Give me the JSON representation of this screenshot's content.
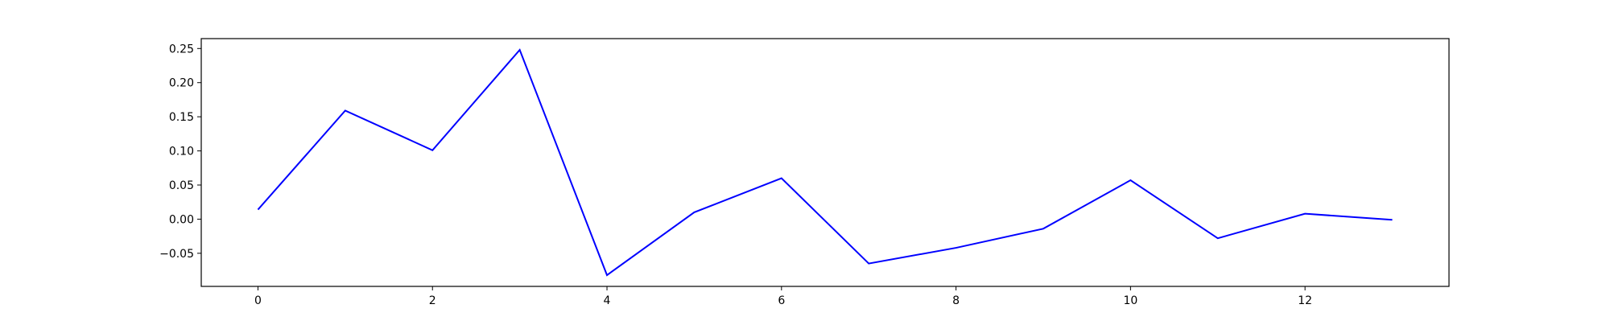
{
  "chart_data": {
    "type": "line",
    "title": "",
    "xlabel": "",
    "ylabel": "",
    "xlim": [
      -0.65,
      13.65
    ],
    "ylim": [
      -0.0985,
      0.2645
    ],
    "grid": false,
    "legend": false,
    "x_ticks": [
      0,
      2,
      4,
      6,
      8,
      10,
      12
    ],
    "x_tick_labels": [
      "0",
      "2",
      "4",
      "6",
      "8",
      "10",
      "12"
    ],
    "y_ticks": [
      -0.05,
      0.0,
      0.05,
      0.1,
      0.15,
      0.2,
      0.25
    ],
    "y_tick_labels": [
      "−0.05",
      "0.00",
      "0.05",
      "0.10",
      "0.15",
      "0.20",
      "0.25"
    ],
    "series": [
      {
        "color": "#0000ff",
        "x": [
          0,
          1,
          2,
          3,
          4,
          5,
          6,
          7,
          8,
          9,
          10,
          11,
          12,
          13
        ],
        "values": [
          0.014,
          0.159,
          0.101,
          0.248,
          -0.082,
          0.01,
          0.06,
          -0.065,
          -0.042,
          -0.014,
          0.057,
          -0.028,
          0.008,
          -0.001
        ]
      }
    ]
  }
}
